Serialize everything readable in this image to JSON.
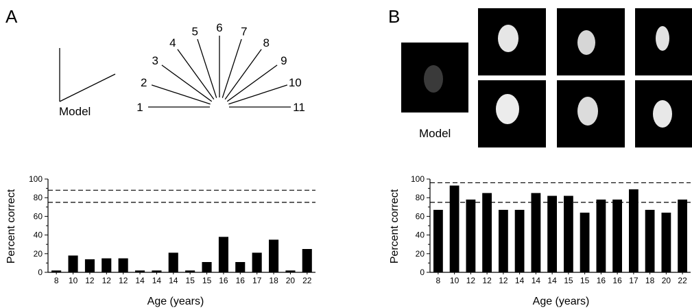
{
  "panels": [
    {
      "letter": "A",
      "model_label": "Model",
      "angle_labels": [
        "1",
        "2",
        "3",
        "4",
        "5",
        "6",
        "7",
        "8",
        "9",
        "10",
        "11"
      ]
    },
    {
      "letter": "B",
      "model_label": "Model"
    }
  ],
  "chart_data": [
    {
      "type": "bar",
      "categories": [
        "8",
        "10",
        "12",
        "12",
        "12",
        "14",
        "14",
        "14",
        "15",
        "15",
        "16",
        "16",
        "17",
        "18",
        "20",
        "22"
      ],
      "values": [
        2,
        18,
        14,
        15,
        15,
        2,
        2,
        21,
        2,
        11,
        38,
        11,
        21,
        35,
        2,
        25
      ],
      "reference_lines": [
        75,
        88
      ],
      "xlabel": "Age (years)",
      "ylabel": "Percent correct",
      "ylim": [
        0,
        100
      ],
      "yticks": [
        "0",
        "20",
        "40",
        "60",
        "80",
        "100"
      ],
      "grid": false,
      "color": "#000000"
    },
    {
      "type": "bar",
      "categories": [
        "8",
        "10",
        "12",
        "12",
        "12",
        "14",
        "14",
        "14",
        "15",
        "15",
        "16",
        "16",
        "17",
        "18",
        "20",
        "22"
      ],
      "values": [
        67,
        93,
        78,
        85,
        67,
        67,
        85,
        82,
        82,
        64,
        78,
        78,
        89,
        67,
        64,
        78
      ],
      "reference_lines": [
        75,
        96
      ],
      "xlabel": "Age (years)",
      "ylabel": "Percent correct",
      "ylim": [
        0,
        100
      ],
      "yticks": [
        "0",
        "20",
        "40",
        "60",
        "80",
        "100"
      ],
      "grid": false,
      "color": "#000000"
    }
  ]
}
